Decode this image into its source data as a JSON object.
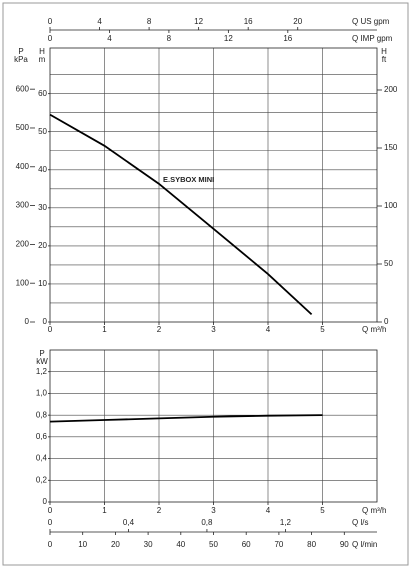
{
  "chart_data": [
    {
      "type": "line",
      "x_label": "Q m³/h",
      "x2_label": "Q US gpm",
      "x3_label": "Q IMP gpm",
      "y_label": "H",
      "y_unit": "m",
      "y2_label": "H",
      "y2_unit": "ft",
      "y3_label": "P",
      "y3_unit": "kPa",
      "xlim": [
        0,
        6
      ],
      "xticks": [
        0,
        1,
        2,
        3,
        4,
        5
      ],
      "x2lim": [
        0,
        26.4
      ],
      "x2ticks": [
        0,
        4,
        8,
        12,
        16,
        20
      ],
      "x3lim": [
        0,
        22
      ],
      "x3ticks": [
        0,
        4,
        8,
        12,
        16
      ],
      "ylim": [
        0,
        72
      ],
      "yticks": [
        0,
        10,
        20,
        30,
        40,
        50,
        60
      ],
      "y_minor_ticks": [
        5,
        15,
        25,
        35,
        45,
        55,
        65
      ],
      "y2lim": [
        0,
        236.2
      ],
      "y2ticks": [
        0,
        50,
        100,
        150,
        200
      ],
      "y3lim": [
        0,
        706.1
      ],
      "y3ticks": [
        0,
        100,
        200,
        300,
        400,
        500,
        600
      ],
      "grid": true,
      "series": [
        {
          "name": "E.SYBOX MINI",
          "color": "#000000",
          "x": [
            0,
            1,
            2,
            3,
            4,
            4.8
          ],
          "values": [
            54.5,
            46.3,
            36.3,
            24.5,
            12.6,
            2
          ]
        }
      ]
    },
    {
      "type": "line",
      "x_label": "Q m³/h",
      "x2_label": "Q l/s",
      "x3_label": "Q l/min",
      "y_label": "P",
      "y_unit": "kW",
      "xlim": [
        0,
        6
      ],
      "xticks": [
        0,
        1,
        2,
        3,
        4,
        5
      ],
      "x2lim": [
        0,
        1.667
      ],
      "x2ticks": [
        0,
        {
          "value": 0.4,
          "label": "0,4"
        },
        {
          "value": 0.8,
          "label": "0,8"
        },
        {
          "value": 1.2,
          "label": "1,2"
        }
      ],
      "x3lim": [
        0,
        100
      ],
      "x3ticks": [
        0,
        10,
        20,
        30,
        40,
        50,
        60,
        70,
        80,
        90
      ],
      "ylim": [
        0,
        1.4
      ],
      "yticks": [
        0,
        {
          "value": 0.2,
          "label": "0,2"
        },
        {
          "value": 0.4,
          "label": "0,4"
        },
        {
          "value": 0.6,
          "label": "0,6"
        },
        {
          "value": 0.8,
          "label": "0,8"
        },
        {
          "value": 1.0,
          "label": "1,0"
        },
        {
          "value": 1.2,
          "label": "1,2"
        }
      ],
      "grid": true,
      "series": [
        {
          "color": "#000000",
          "x": [
            0,
            1,
            2,
            3,
            4,
            5
          ],
          "values": [
            0.74,
            0.755,
            0.77,
            0.785,
            0.795,
            0.8
          ]
        }
      ]
    }
  ]
}
